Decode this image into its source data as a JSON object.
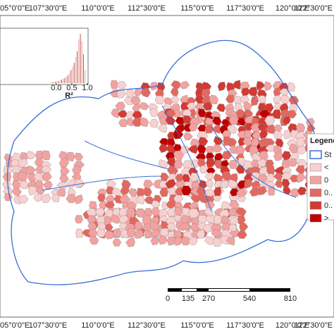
{
  "map": {
    "top_labels": [
      "05°0'0\"E",
      "107°30'0\"E",
      "110°0'0\"E",
      "112°30'0\"E",
      "115°0'0\"E",
      "117°30'0\"E",
      "120°0'0\"E",
      "122°30'0\"E"
    ],
    "bottom_labels": [
      "05°0'0\"E",
      "107°30'0\"E",
      "110°0'0\"E",
      "112°30'0\"E",
      "115°0'0\"E",
      "117°30'0\"E",
      "120°0'0\"E",
      "122°30'0\"E"
    ],
    "inset": {
      "type": "histogram",
      "xlabel": "R²",
      "color": "#c0504d",
      "bins": [
        -0.2,
        -0.15,
        -0.1,
        -0.05,
        0.0,
        0.05,
        0.1,
        0.15,
        0.2,
        0.25,
        0.3,
        0.35,
        0.4,
        0.45,
        0.5,
        0.55,
        0.6,
        0.65,
        0.7,
        0.75,
        0.8,
        0.85,
        0.9,
        0.95
      ],
      "values": [
        1,
        1,
        2,
        2,
        3,
        3,
        4,
        5,
        6,
        7,
        9,
        11,
        14,
        18,
        22,
        28,
        36,
        44,
        60,
        68,
        58,
        40,
        18
      ],
      "xlim": [
        -1.8,
        1.0
      ],
      "ylim": [
        0,
        72
      ],
      "xticks": [
        {
          "value": 0,
          "label": "0.0"
        },
        {
          "value": 0.5,
          "label": "0.5"
        },
        {
          "value": 1,
          "label": "1.0"
        }
      ]
    },
    "legend": {
      "title": "Legend",
      "items": [
        {
          "label": "St",
          "color": "#ffffff"
        },
        {
          "label": "<",
          "color": "#f8d0d0"
        },
        {
          "label": "0",
          "color": "#f2a2a0"
        },
        {
          "label": "0..",
          "color": "#e4685f"
        },
        {
          "label": "0..",
          "color": "#d33a32"
        },
        {
          "label": ">",
          "color": "#c00000"
        }
      ]
    },
    "scale_bar": {
      "ticks": [
        0,
        135,
        270,
        540,
        810
      ]
    }
  }
}
